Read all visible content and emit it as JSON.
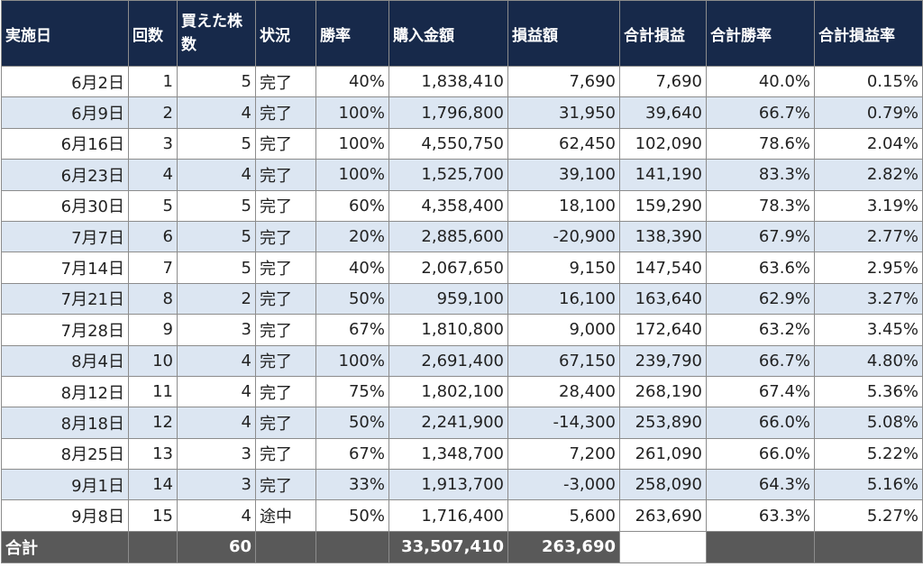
{
  "headers": [
    "実施日",
    "回数",
    "買えた株数",
    "状況",
    "勝率",
    "購入金額",
    "損益額",
    "合計損益",
    "合計勝率",
    "合計損益率"
  ],
  "rows": [
    [
      "6月2日",
      "1",
      "5",
      "完了",
      "40%",
      "1,838,410",
      "7,690",
      "7,690",
      "40.0%",
      "0.15%"
    ],
    [
      "6月9日",
      "2",
      "4",
      "完了",
      "100%",
      "1,796,800",
      "31,950",
      "39,640",
      "66.7%",
      "0.79%"
    ],
    [
      "6月16日",
      "3",
      "5",
      "完了",
      "100%",
      "4,550,750",
      "62,450",
      "102,090",
      "78.6%",
      "2.04%"
    ],
    [
      "6月23日",
      "4",
      "4",
      "完了",
      "100%",
      "1,525,700",
      "39,100",
      "141,190",
      "83.3%",
      "2.82%"
    ],
    [
      "6月30日",
      "5",
      "5",
      "完了",
      "60%",
      "4,358,400",
      "18,100",
      "159,290",
      "78.3%",
      "3.19%"
    ],
    [
      "7月7日",
      "6",
      "5",
      "完了",
      "20%",
      "2,885,600",
      "-20,900",
      "138,390",
      "67.9%",
      "2.77%"
    ],
    [
      "7月14日",
      "7",
      "5",
      "完了",
      "40%",
      "2,067,650",
      "9,150",
      "147,540",
      "63.6%",
      "2.95%"
    ],
    [
      "7月21日",
      "8",
      "2",
      "完了",
      "50%",
      "959,100",
      "16,100",
      "163,640",
      "62.9%",
      "3.27%"
    ],
    [
      "7月28日",
      "9",
      "3",
      "完了",
      "67%",
      "1,810,800",
      "9,000",
      "172,640",
      "63.2%",
      "3.45%"
    ],
    [
      "8月4日",
      "10",
      "4",
      "完了",
      "100%",
      "2,691,400",
      "67,150",
      "239,790",
      "66.7%",
      "4.80%"
    ],
    [
      "8月12日",
      "11",
      "4",
      "完了",
      "75%",
      "1,802,100",
      "28,400",
      "268,190",
      "67.4%",
      "5.36%"
    ],
    [
      "8月18日",
      "12",
      "4",
      "完了",
      "50%",
      "2,241,900",
      "-14,300",
      "253,890",
      "66.0%",
      "5.08%"
    ],
    [
      "8月25日",
      "13",
      "3",
      "完了",
      "67%",
      "1,348,700",
      "7,200",
      "261,090",
      "66.0%",
      "5.22%"
    ],
    [
      "9月1日",
      "14",
      "3",
      "完了",
      "33%",
      "1,913,700",
      "-3,000",
      "258,090",
      "64.3%",
      "5.16%"
    ],
    [
      "9月8日",
      "15",
      "4",
      "途中",
      "50%",
      "1,716,400",
      "5,600",
      "263,690",
      "63.3%",
      "5.27%"
    ]
  ],
  "total": {
    "label": "合計",
    "shares": "60",
    "purchase": "33,507,410",
    "pnl": "263,690"
  },
  "colors": {
    "header_bg": "#17294a",
    "stripe": "#dce6f2",
    "total_bg": "#595959"
  }
}
